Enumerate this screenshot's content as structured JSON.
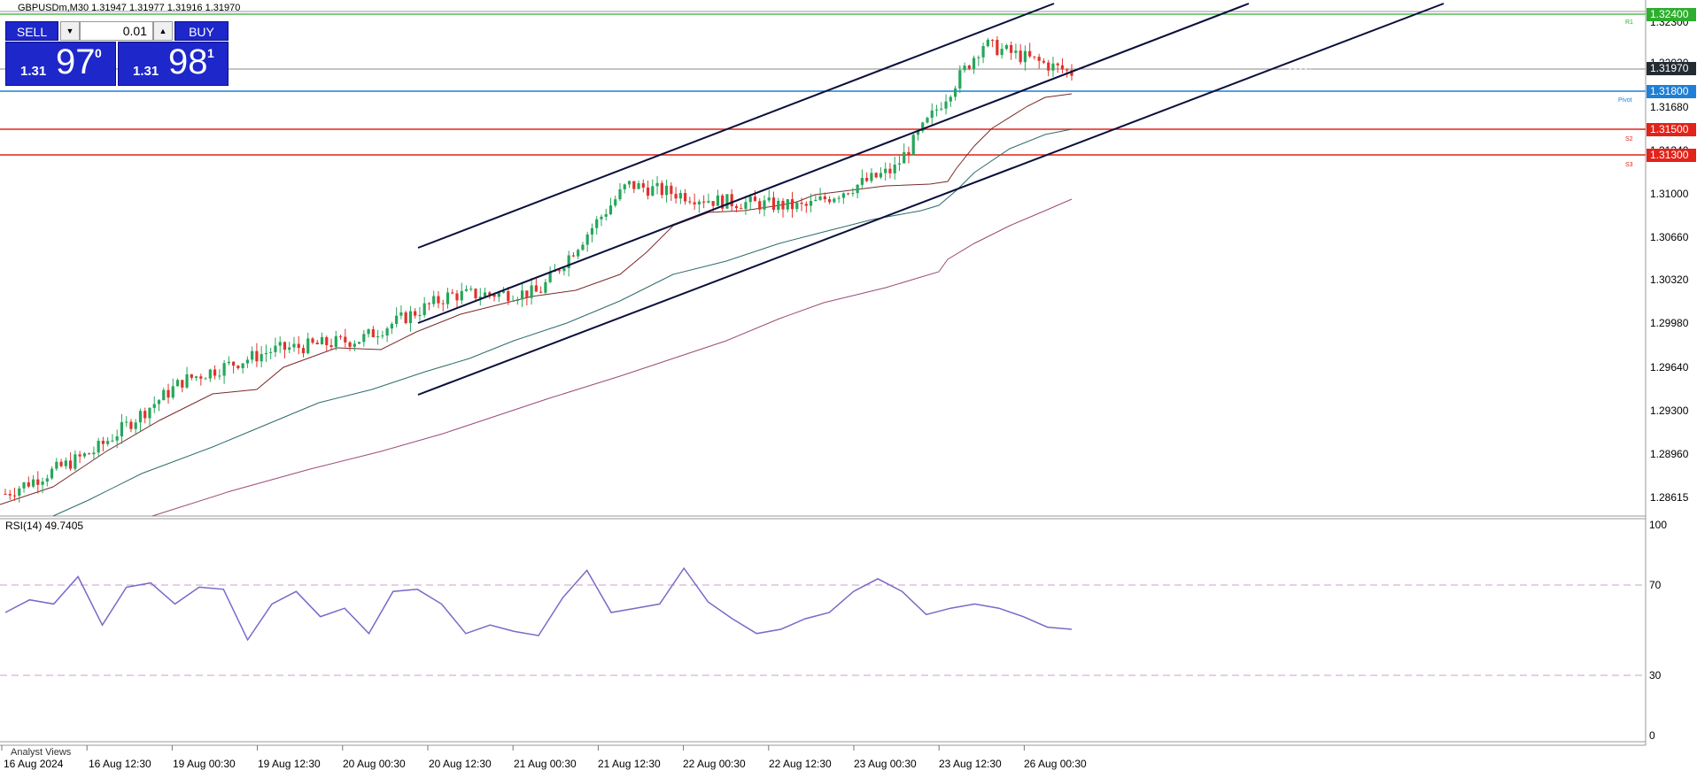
{
  "header": {
    "title": "GBPUSDm,M30  1.31947 1.31977 1.31916 1.31970"
  },
  "trade_panel": {
    "sell_label": "SELL",
    "buy_label": "BUY",
    "lot_value": "0.01",
    "down_arrow": "▼",
    "up_arrow": "▲",
    "sell_price": {
      "small": "1.31",
      "big": "97",
      "sup": "0"
    },
    "buy_price": {
      "small": "1.31",
      "big": "98",
      "sup": "1"
    }
  },
  "price_axis": [
    "1.32300",
    "1.32020",
    "1.31680",
    "1.31340",
    "1.31000",
    "1.30660",
    "1.30320",
    "1.29980",
    "1.29640",
    "1.29300",
    "1.28960",
    "1.28615"
  ],
  "price_tags": [
    {
      "value": "1.32400",
      "color": "#2eae2e"
    },
    {
      "value": "1.31970",
      "color": "#232b33"
    },
    {
      "value": "1.31800",
      "color": "#1f7fd6"
    },
    {
      "value": "1.31500",
      "color": "#e2231a"
    },
    {
      "value": "1.31300",
      "color": "#e2231a"
    }
  ],
  "pivot_labels": [
    "R1",
    "Pivot",
    "S2",
    "S3"
  ],
  "time_axis": [
    "16 Aug 2024",
    "16 Aug 12:30",
    "19 Aug 00:30",
    "19 Aug 12:30",
    "20 Aug 00:30",
    "20 Aug 12:30",
    "21 Aug 00:30",
    "21 Aug 12:30",
    "22 Aug 00:30",
    "22 Aug 12:30",
    "23 Aug 00:30",
    "23 Aug 12:30",
    "26 Aug 00:30"
  ],
  "rsi": {
    "title": "RSI(14) 49.7405",
    "levels": [
      "100",
      "70",
      "30",
      "0"
    ]
  },
  "bottom_panel": {
    "label": "Analyst Views"
  },
  "colors": {
    "bull": "#26a65b",
    "bear": "#e0322b",
    "rsi_line": "#7b68c8",
    "channel": "#0a0f3c"
  },
  "chart_data": {
    "type": "candlestick",
    "symbol": "GBPUSDm",
    "timeframe": "M30",
    "ohlc_display": {
      "open": 1.31947,
      "high": 1.31977,
      "low": 1.31916,
      "close": 1.3197
    },
    "x": [
      "16 Aug 2024",
      "16 Aug 12:30",
      "19 Aug 00:30",
      "19 Aug 12:30",
      "20 Aug 00:30",
      "20 Aug 12:30",
      "21 Aug 00:30",
      "21 Aug 12:30",
      "22 Aug 00:30",
      "22 Aug 12:30",
      "23 Aug 00:30",
      "23 Aug 12:30",
      "26 Aug 00:30"
    ],
    "series": [
      {
        "values": [
          1.2862,
          1.2896,
          1.2952,
          1.2976,
          1.2985,
          1.302,
          1.3022,
          1.3108,
          1.3095,
          1.309,
          1.312,
          1.322,
          1.3197
        ]
      }
    ],
    "ylim": [
      1.2845,
      1.3245
    ],
    "horizontal_levels": [
      1.324,
      1.318,
      1.315,
      1.313
    ],
    "rsi_period": 14,
    "rsi_last": 49.7405,
    "rsi_levels": [
      70,
      30
    ],
    "rsi_ylim": [
      0,
      100
    ],
    "rsi_values": [
      58,
      64,
      62,
      75,
      52,
      70,
      72,
      62,
      70,
      69,
      45,
      62,
      68,
      56,
      60,
      48,
      68,
      69,
      62,
      48,
      52,
      49,
      47,
      65,
      78,
      58,
      60,
      62,
      79,
      63,
      55,
      48,
      50,
      55,
      58,
      68,
      74,
      68,
      57,
      60,
      62,
      60,
      56,
      51,
      50
    ]
  }
}
